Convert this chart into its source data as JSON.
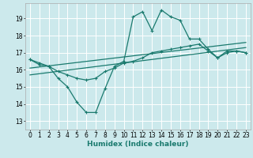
{
  "xlabel": "Humidex (Indice chaleur)",
  "xlim": [
    -0.5,
    23.5
  ],
  "ylim": [
    12.5,
    19.9
  ],
  "bg_color": "#cce9ec",
  "grid_color": "#ffffff",
  "line_color": "#1a7a6e",
  "line1": {
    "x": [
      0,
      1,
      2,
      3,
      4,
      5,
      6,
      7,
      8,
      9,
      10,
      11,
      12,
      13,
      14,
      15,
      16,
      17,
      18,
      19,
      20,
      21,
      22,
      23
    ],
    "y": [
      16.6,
      16.3,
      16.2,
      15.5,
      15.0,
      14.1,
      13.5,
      13.5,
      14.9,
      16.2,
      16.5,
      19.1,
      19.4,
      18.3,
      19.5,
      19.1,
      18.9,
      17.8,
      17.8,
      17.2,
      16.7,
      17.1,
      17.1,
      17.0
    ]
  },
  "line2": {
    "x": [
      0,
      1,
      2,
      3,
      4,
      5,
      6,
      7,
      8,
      9,
      10,
      11,
      12,
      13,
      14,
      15,
      16,
      17,
      18,
      19,
      20,
      21,
      22,
      23
    ],
    "y": [
      16.6,
      16.4,
      16.2,
      15.9,
      15.7,
      15.5,
      15.4,
      15.5,
      15.9,
      16.1,
      16.4,
      16.5,
      16.7,
      17.0,
      17.1,
      17.2,
      17.3,
      17.4,
      17.5,
      17.1,
      16.7,
      17.0,
      17.1,
      17.0
    ]
  },
  "line3": {
    "x": [
      0,
      23
    ],
    "y": [
      15.7,
      17.3
    ]
  },
  "line4": {
    "x": [
      0,
      23
    ],
    "y": [
      16.1,
      17.6
    ]
  },
  "xticks": [
    0,
    1,
    2,
    3,
    4,
    5,
    6,
    7,
    8,
    9,
    10,
    11,
    12,
    13,
    14,
    15,
    16,
    17,
    18,
    19,
    20,
    21,
    22,
    23
  ],
  "yticks": [
    13,
    14,
    15,
    16,
    17,
    18,
    19
  ],
  "tick_fontsize": 5.5,
  "label_fontsize": 6.5
}
